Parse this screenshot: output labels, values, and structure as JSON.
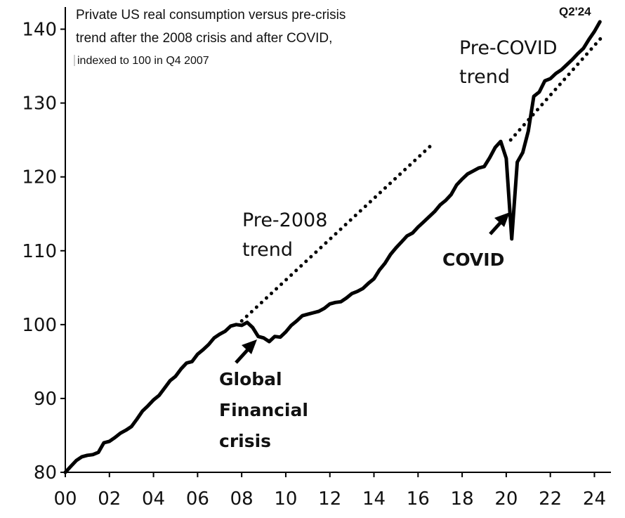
{
  "chart_data": {
    "type": "line",
    "title_lines": [
      "Private US real consumption versus pre-crisis",
      "trend after the 2008 crisis and after COVID,",
      "indexed to 100 in Q4 2007"
    ],
    "xlabel": "",
    "ylabel": "",
    "xlim": [
      2000,
      2024.75
    ],
    "ylim": [
      80,
      143
    ],
    "x_ticks": [
      2000,
      2002,
      2004,
      2006,
      2008,
      2010,
      2012,
      2014,
      2016,
      2018,
      2020,
      2022,
      2024
    ],
    "x_tick_labels": [
      "00",
      "02",
      "04",
      "06",
      "08",
      "10",
      "12",
      "14",
      "16",
      "18",
      "20",
      "22",
      "24"
    ],
    "y_ticks": [
      80,
      90,
      100,
      110,
      120,
      130,
      140
    ],
    "y_tick_labels": [
      "80",
      "90",
      "100",
      "110",
      "120",
      "130",
      "140"
    ],
    "grid": false,
    "legend": "none",
    "series": [
      {
        "style": "solid",
        "color": "#000000",
        "x": [
          2000.0,
          2000.25,
          2000.5,
          2000.75,
          2001.0,
          2001.25,
          2001.5,
          2001.75,
          2002.0,
          2002.25,
          2002.5,
          2002.75,
          2003.0,
          2003.25,
          2003.5,
          2003.75,
          2004.0,
          2004.25,
          2004.5,
          2004.75,
          2005.0,
          2005.25,
          2005.5,
          2005.75,
          2006.0,
          2006.25,
          2006.5,
          2006.75,
          2007.0,
          2007.25,
          2007.5,
          2007.75,
          2008.0,
          2008.25,
          2008.5,
          2008.75,
          2009.0,
          2009.25,
          2009.5,
          2009.75,
          2010.0,
          2010.25,
          2010.5,
          2010.75,
          2011.0,
          2011.25,
          2011.5,
          2011.75,
          2012.0,
          2012.25,
          2012.5,
          2012.75,
          2013.0,
          2013.25,
          2013.5,
          2013.75,
          2014.0,
          2014.25,
          2014.5,
          2014.75,
          2015.0,
          2015.25,
          2015.5,
          2015.75,
          2016.0,
          2016.25,
          2016.5,
          2016.75,
          2017.0,
          2017.25,
          2017.5,
          2017.75,
          2018.0,
          2018.25,
          2018.5,
          2018.75,
          2019.0,
          2019.25,
          2019.5,
          2019.75,
          2020.0,
          2020.25,
          2020.5,
          2020.75,
          2021.0,
          2021.25,
          2021.5,
          2021.75,
          2022.0,
          2022.25,
          2022.5,
          2022.75,
          2023.0,
          2023.25,
          2023.5,
          2023.75,
          2024.0,
          2024.25
        ],
        "values": [
          80.0,
          80.8,
          81.6,
          82.1,
          82.3,
          82.4,
          82.7,
          84.0,
          84.2,
          84.7,
          85.3,
          85.7,
          86.2,
          87.2,
          88.3,
          89.0,
          89.8,
          90.4,
          91.4,
          92.4,
          93.0,
          94.0,
          94.8,
          95.0,
          96.0,
          96.6,
          97.3,
          98.2,
          98.7,
          99.1,
          99.8,
          100.0,
          99.9,
          100.3,
          99.6,
          98.4,
          98.2,
          97.7,
          98.4,
          98.3,
          99.0,
          99.9,
          100.5,
          101.2,
          101.4,
          101.6,
          101.8,
          102.2,
          102.8,
          103.0,
          103.1,
          103.6,
          104.2,
          104.5,
          104.9,
          105.6,
          106.2,
          107.4,
          108.3,
          109.5,
          110.4,
          111.2,
          112.0,
          112.4,
          113.2,
          113.9,
          114.6,
          115.3,
          116.2,
          116.8,
          117.6,
          118.9,
          119.7,
          120.4,
          120.8,
          121.2,
          121.4,
          122.6,
          124.0,
          124.8,
          122.5,
          111.6,
          122.0,
          123.3,
          126.2,
          130.9,
          131.5,
          133.0,
          133.3,
          134.0,
          134.5,
          135.2,
          135.9,
          136.7,
          137.4,
          138.6,
          139.7,
          141.0
        ]
      },
      {
        "style": "dotted",
        "color": "#000000",
        "x": [
          2008.0,
          2016.75
        ],
        "values": [
          100.5,
          124.7
        ]
      },
      {
        "style": "dotted",
        "color": "#000000",
        "x": [
          2020.2,
          2024.3
        ],
        "values": [
          125.0,
          138.8
        ]
      }
    ],
    "annotations": {
      "pre2008": [
        "Pre-2008",
        "trend"
      ],
      "precovid": [
        "Pre-COVID",
        "trend"
      ],
      "gfc": [
        "Global",
        "Financial",
        "crisis"
      ],
      "covid": "COVID",
      "end_label": "Q2'24"
    }
  }
}
